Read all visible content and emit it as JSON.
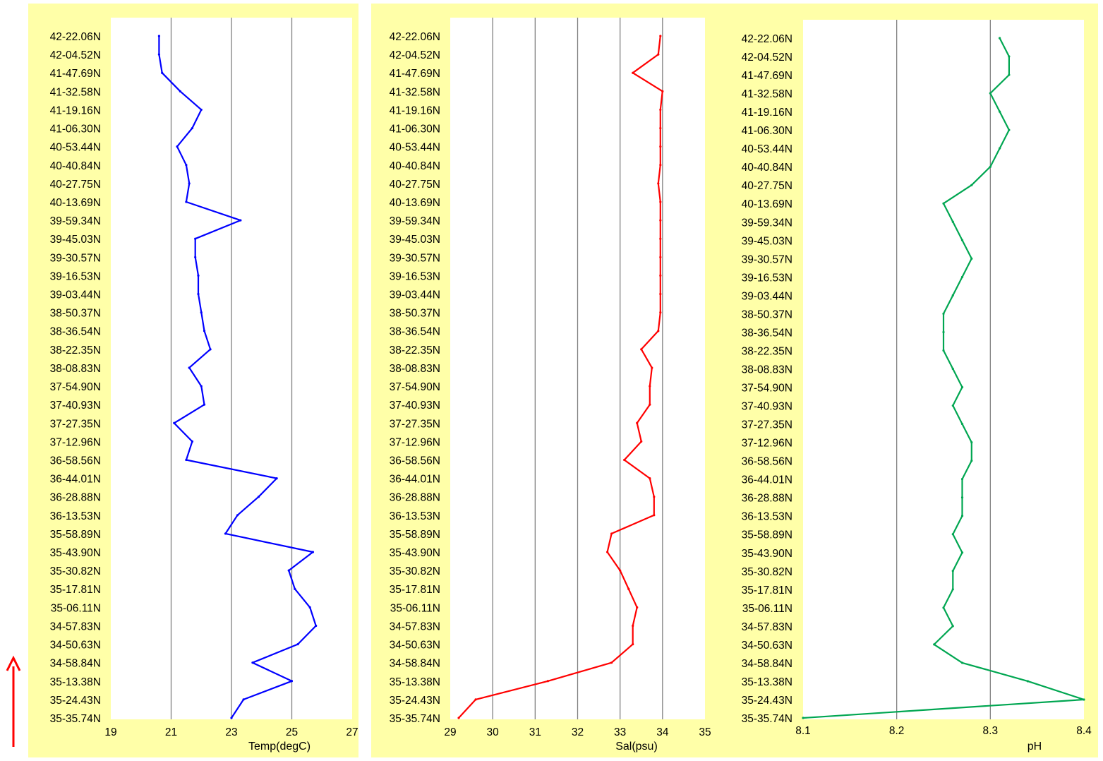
{
  "chart_data": [
    {
      "type": "line",
      "orientation": "vertical-profile",
      "xlabel": "Temp(degC)",
      "ylabel": "",
      "xlim": [
        19,
        27
      ],
      "xticks": [
        19,
        21,
        23,
        25,
        27
      ],
      "grid": true,
      "color": "#0000ff",
      "categories": [
        "42-22.06N",
        "42-04.52N",
        "41-47.69N",
        "41-32.58N",
        "41-19.16N",
        "41-06.30N",
        "40-53.44N",
        "40-40.84N",
        "40-27.75N",
        "40-13.69N",
        "39-59.34N",
        "39-45.03N",
        "39-30.57N",
        "39-16.53N",
        "39-03.44N",
        "38-50.37N",
        "38-36.54N",
        "38-22.35N",
        "38-08.83N",
        "37-54.90N",
        "37-40.93N",
        "37-27.35N",
        "37-12.96N",
        "36-58.56N",
        "36-44.01N",
        "36-28.88N",
        "36-13.53N",
        "35-58.89N",
        "35-43.90N",
        "35-30.82N",
        "35-17.81N",
        "35-06.11N",
        "34-57.83N",
        "34-50.63N",
        "34-58.84N",
        "35-13.38N",
        "35-24.43N",
        "35-35.74N"
      ],
      "series": [
        {
          "values": [
            20.6,
            20.6,
            20.7,
            21.3,
            22.0,
            21.7,
            21.2,
            21.5,
            21.6,
            21.5,
            23.3,
            21.8,
            21.8,
            21.9,
            21.9,
            22.0,
            22.1,
            22.3,
            21.6,
            22.0,
            22.1,
            21.1,
            21.7,
            21.5,
            24.5,
            23.9,
            23.2,
            22.8,
            25.7,
            24.9,
            25.1,
            25.6,
            25.8,
            25.2,
            23.7,
            25.0,
            23.4,
            23.0
          ]
        }
      ]
    },
    {
      "type": "line",
      "orientation": "vertical-profile",
      "xlabel": "Sal(psu)",
      "ylabel": "",
      "xlim": [
        29,
        35
      ],
      "xticks": [
        29,
        30,
        31,
        32,
        33,
        34,
        35
      ],
      "grid": true,
      "color": "#ff0000",
      "categories": [
        "42-22.06N",
        "42-04.52N",
        "41-47.69N",
        "41-32.58N",
        "41-19.16N",
        "41-06.30N",
        "40-53.44N",
        "40-40.84N",
        "40-27.75N",
        "40-13.69N",
        "39-59.34N",
        "39-45.03N",
        "39-30.57N",
        "39-16.53N",
        "39-03.44N",
        "38-50.37N",
        "38-36.54N",
        "38-22.35N",
        "38-08.83N",
        "37-54.90N",
        "37-40.93N",
        "37-27.35N",
        "37-12.96N",
        "36-58.56N",
        "36-44.01N",
        "36-28.88N",
        "36-13.53N",
        "35-58.89N",
        "35-43.90N",
        "35-30.82N",
        "35-17.81N",
        "35-06.11N",
        "34-57.83N",
        "34-50.63N",
        "34-58.84N",
        "35-13.38N",
        "35-24.43N",
        "35-35.74N"
      ],
      "series": [
        {
          "values": [
            33.95,
            33.9,
            33.3,
            34.0,
            33.95,
            33.95,
            33.95,
            33.95,
            33.9,
            33.95,
            33.95,
            33.95,
            33.95,
            33.95,
            33.95,
            33.95,
            33.9,
            33.5,
            33.75,
            33.7,
            33.7,
            33.4,
            33.5,
            33.1,
            33.7,
            33.8,
            33.8,
            32.8,
            32.7,
            33.0,
            33.2,
            33.4,
            33.3,
            33.3,
            32.8,
            31.3,
            29.6,
            29.2
          ]
        }
      ]
    },
    {
      "type": "line",
      "orientation": "vertical-profile",
      "xlabel": "pH",
      "ylabel": "",
      "xlim": [
        8.1,
        8.4
      ],
      "xticks": [
        8.1,
        8.2,
        8.3,
        8.4
      ],
      "grid": true,
      "color": "#00a651",
      "categories": [
        "42-22.06N",
        "42-04.52N",
        "41-47.69N",
        "41-32.58N",
        "41-19.16N",
        "41-06.30N",
        "40-53.44N",
        "40-40.84N",
        "40-27.75N",
        "40-13.69N",
        "39-59.34N",
        "39-45.03N",
        "39-30.57N",
        "39-16.53N",
        "39-03.44N",
        "38-50.37N",
        "38-36.54N",
        "38-22.35N",
        "38-08.83N",
        "37-54.90N",
        "37-40.93N",
        "37-27.35N",
        "37-12.96N",
        "36-58.56N",
        "36-44.01N",
        "36-28.88N",
        "36-13.53N",
        "35-58.89N",
        "35-43.90N",
        "35-30.82N",
        "35-17.81N",
        "35-06.11N",
        "34-57.83N",
        "34-50.63N",
        "34-58.84N",
        "35-13.38N",
        "35-24.43N",
        "35-35.74N"
      ],
      "series": [
        {
          "values": [
            8.31,
            8.32,
            8.32,
            8.3,
            8.31,
            8.32,
            8.31,
            8.3,
            8.28,
            8.25,
            8.26,
            8.27,
            8.28,
            8.27,
            8.26,
            8.25,
            8.25,
            8.25,
            8.26,
            8.27,
            8.26,
            8.27,
            8.28,
            8.28,
            8.27,
            8.27,
            8.27,
            8.26,
            8.27,
            8.26,
            8.26,
            8.25,
            8.26,
            8.24,
            8.27,
            8.34,
            8.4,
            8.1
          ]
        }
      ]
    }
  ]
}
